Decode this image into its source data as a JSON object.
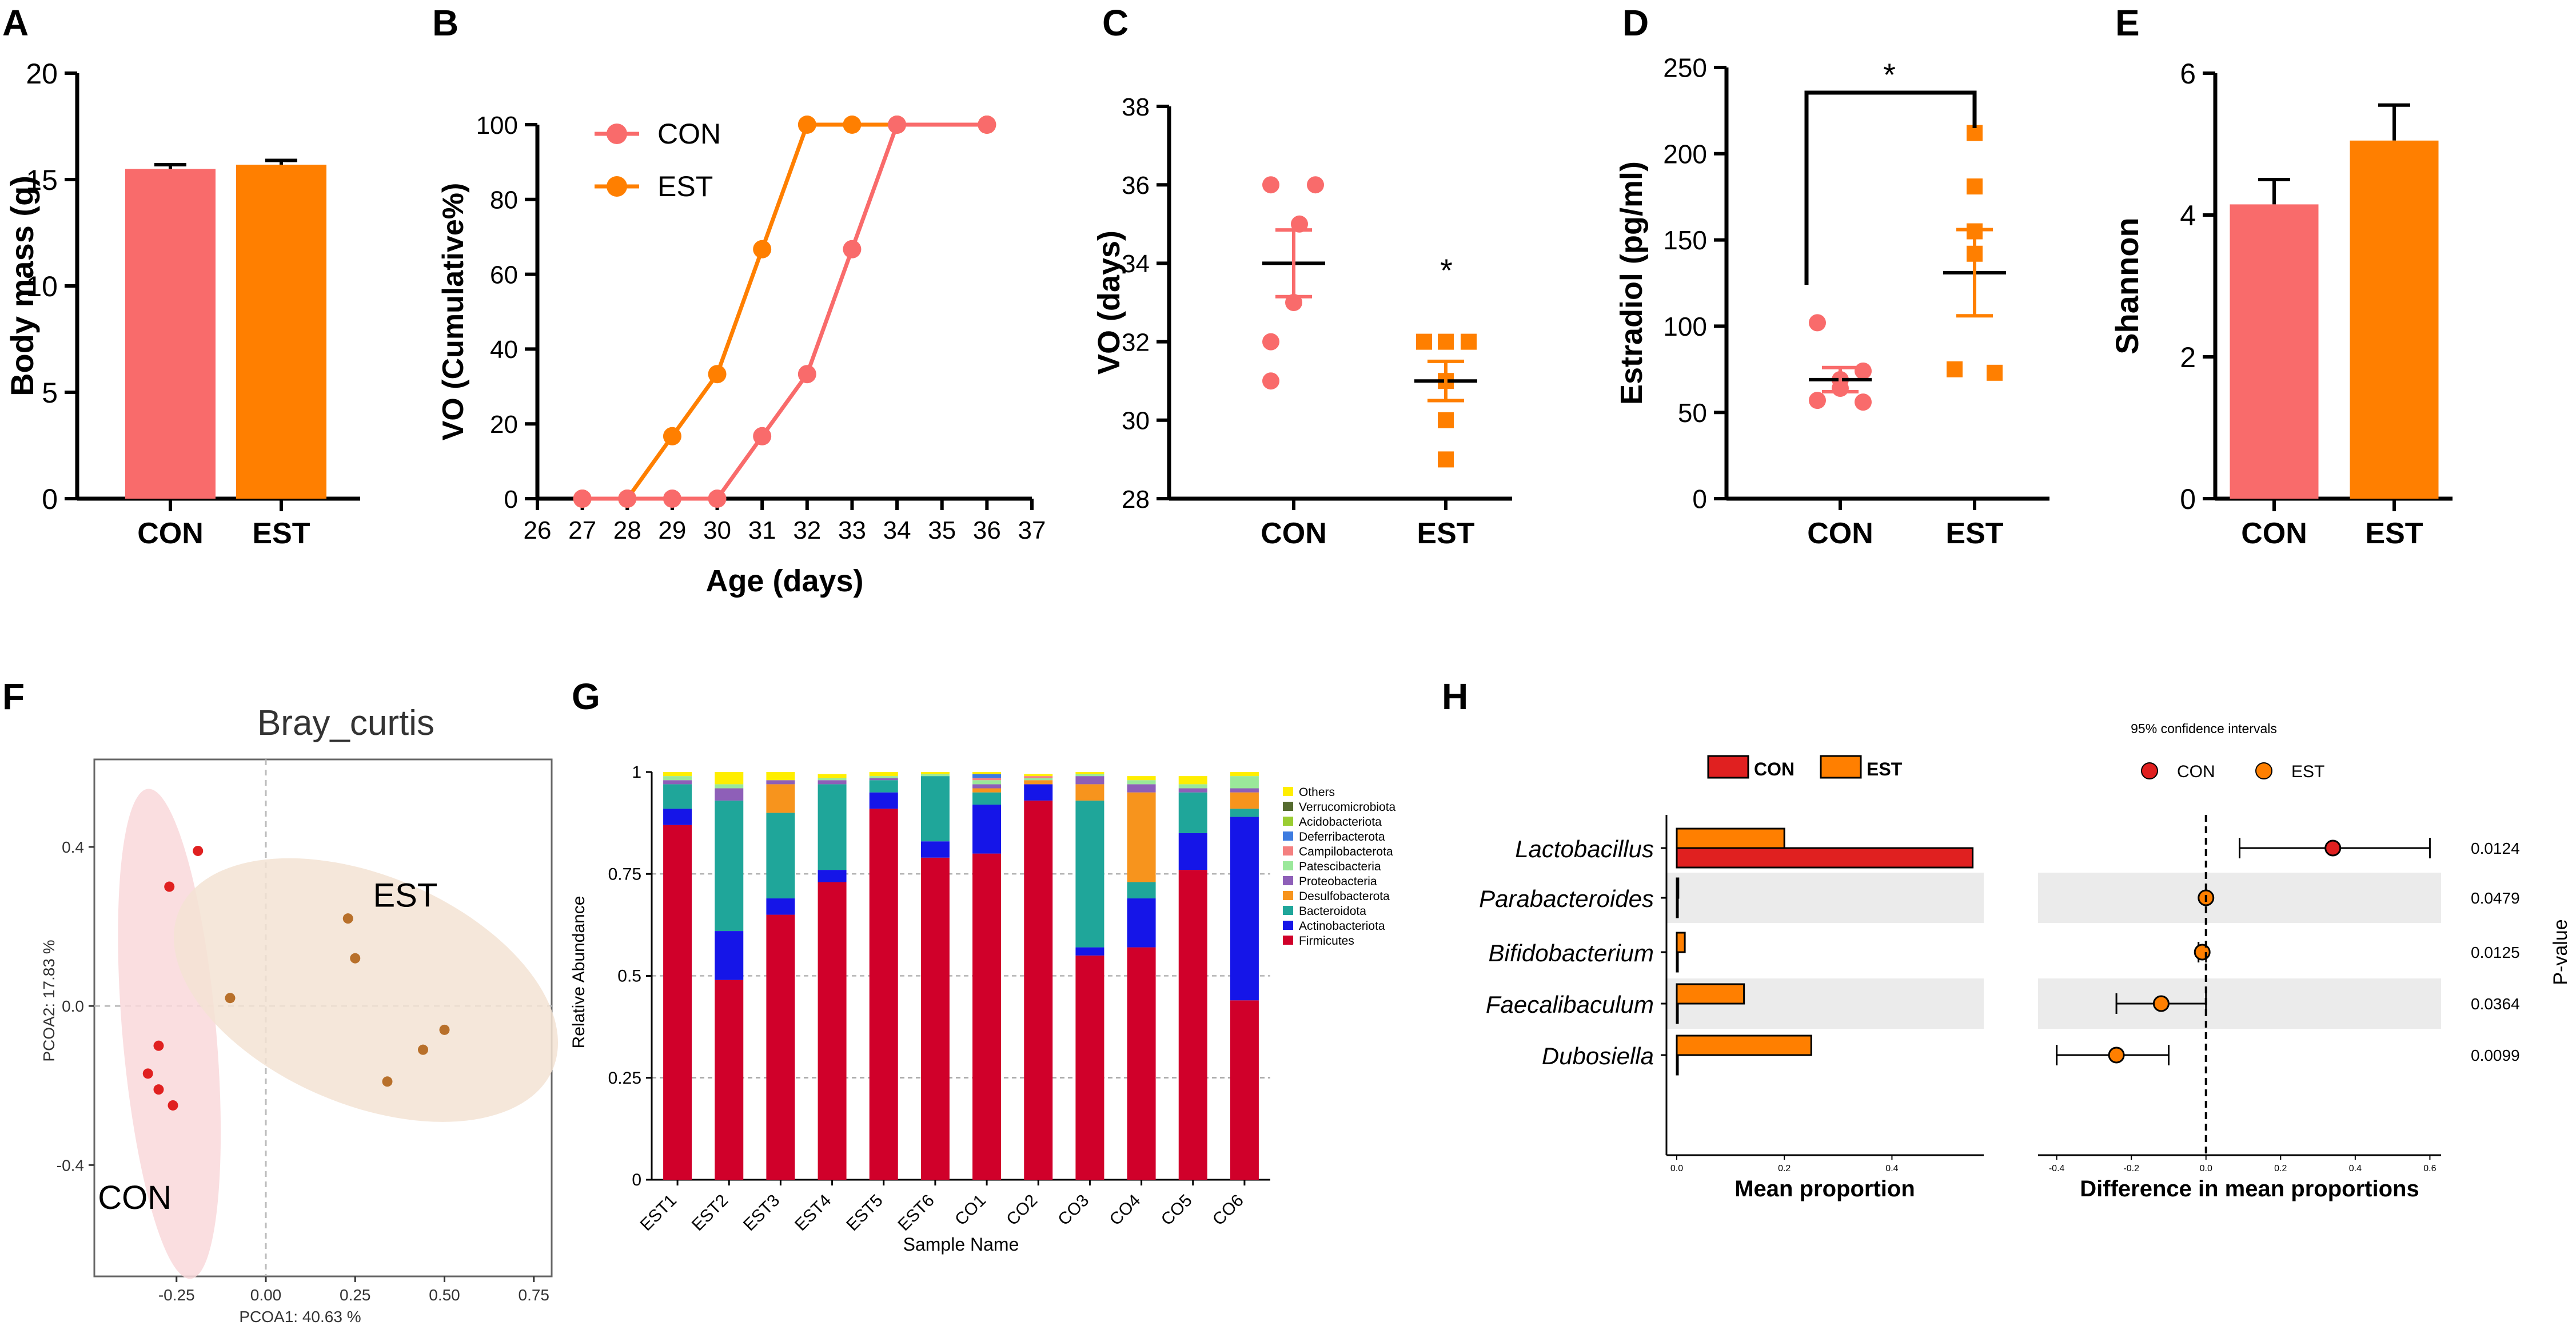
{
  "colors": {
    "con": "#F96B6B",
    "est": "#FF7F00",
    "con_dark": "#E02020",
    "est_brown": "#B8702A",
    "black": "#000000",
    "pcoa_con_fill": "#F9D8DA",
    "pcoa_est_fill": "#F3E3D3"
  },
  "chart_data": [
    {
      "panel": "A",
      "type": "bar",
      "ylabel": "Body mass (g)",
      "ylim": [
        0,
        20
      ],
      "yticks": [
        "0",
        "5",
        "10",
        "15",
        "20"
      ],
      "categories": [
        "CON",
        "EST"
      ],
      "values": [
        15.5,
        15.7
      ],
      "errors": [
        0.2,
        0.2
      ]
    },
    {
      "panel": "B",
      "type": "line",
      "xlabel": "Age (days)",
      "ylabel": "VO (Cumulative%)",
      "xlim": [
        26,
        37
      ],
      "ylim": [
        0,
        100
      ],
      "xticks": [
        "26",
        "27",
        "28",
        "29",
        "30",
        "31",
        "32",
        "33",
        "34",
        "35",
        "36",
        "37"
      ],
      "yticks": [
        "0",
        "20",
        "40",
        "60",
        "80",
        "100"
      ],
      "series": [
        {
          "name": "CON",
          "x": [
            27,
            28,
            29,
            30,
            31,
            32,
            33,
            34,
            36
          ],
          "y": [
            0,
            0,
            0,
            0,
            16.7,
            33.3,
            66.7,
            100,
            100
          ]
        },
        {
          "name": "EST",
          "x": [
            27,
            28,
            29,
            30,
            31,
            32,
            33,
            34,
            36
          ],
          "y": [
            0,
            0,
            16.7,
            33.3,
            66.7,
            100,
            100,
            100,
            100
          ]
        }
      ]
    },
    {
      "panel": "C",
      "type": "scatter",
      "ylabel": "VO (days)",
      "ylim": [
        28,
        38
      ],
      "yticks": [
        "28",
        "30",
        "32",
        "34",
        "36",
        "38"
      ],
      "categories": [
        "CON",
        "EST"
      ],
      "points": [
        [
          36,
          36,
          35,
          33,
          32,
          31
        ],
        [
          32,
          32,
          32,
          31,
          30,
          29
        ]
      ],
      "means": [
        34,
        31
      ],
      "sem": [
        0.85,
        0.5
      ],
      "annotation": "*"
    },
    {
      "panel": "D",
      "type": "scatter",
      "ylabel": "Estradiol (pg/ml)",
      "ylim": [
        0,
        250
      ],
      "yticks": [
        "0",
        "50",
        "100",
        "150",
        "200",
        "250"
      ],
      "categories": [
        "CON",
        "EST"
      ],
      "points": [
        [
          102,
          74,
          69,
          64,
          57,
          56
        ],
        [
          212,
          181,
          155,
          142,
          75,
          73
        ]
      ],
      "means": [
        69,
        131
      ],
      "sem": [
        7,
        25
      ],
      "annotation": "*"
    },
    {
      "panel": "E",
      "type": "bar",
      "ylabel": "Shannon",
      "ylim": [
        0,
        6
      ],
      "yticks": [
        "0",
        "2",
        "4",
        "6"
      ],
      "categories": [
        "CON",
        "EST"
      ],
      "values": [
        4.15,
        5.05
      ],
      "errors": [
        0.35,
        0.5
      ]
    },
    {
      "panel": "F",
      "type": "scatter",
      "title": "Bray_curtis",
      "xlabel": "PCOA1:  40.63 %",
      "ylabel": "PCOA2:  17.83 %",
      "xlim": [
        -0.48,
        0.8
      ],
      "ylim": [
        -0.68,
        0.62
      ],
      "xticks": [
        "-0.25",
        "0.00",
        "0.25",
        "0.50",
        "0.75"
      ],
      "xtick_values": [
        -0.25,
        0,
        0.25,
        0.5,
        0.75
      ],
      "yticks": [
        "0.4",
        "0.0",
        "-0.4"
      ],
      "ytick_values": [
        0.4,
        0,
        -0.4
      ],
      "groups": [
        {
          "name": "CON",
          "x": [
            -0.19,
            -0.27,
            -0.3,
            -0.33,
            -0.3,
            -0.26
          ],
          "y": [
            0.39,
            0.3,
            -0.1,
            -0.17,
            -0.21,
            -0.25
          ]
        },
        {
          "name": "EST",
          "x": [
            -0.1,
            0.23,
            0.25,
            0.5,
            0.44,
            0.34
          ],
          "y": [
            0.02,
            0.22,
            0.12,
            -0.06,
            -0.11,
            -0.19
          ]
        }
      ],
      "labels": [
        "EST",
        "CON"
      ]
    },
    {
      "panel": "G",
      "type": "bar",
      "stacked": true,
      "xlabel": "Sample Name",
      "ylabel": "Relative Abundance",
      "ylim": [
        0,
        1
      ],
      "yticks": [
        "0",
        "0.25",
        "0.5",
        "0.75",
        "1"
      ],
      "categories": [
        "EST1",
        "EST2",
        "EST3",
        "EST4",
        "EST5",
        "EST6",
        "CO1",
        "CO2",
        "CO3",
        "CO4",
        "CO5",
        "CO6"
      ],
      "series": [
        {
          "name": "Firmicutes",
          "color": "#D0002A",
          "values": [
            0.87,
            0.49,
            0.65,
            0.73,
            0.91,
            0.79,
            0.8,
            0.93,
            0.55,
            0.57,
            0.76,
            0.44
          ]
        },
        {
          "name": "Actinobacteriota",
          "color": "#1515E8",
          "values": [
            0.04,
            0.12,
            0.04,
            0.03,
            0.04,
            0.04,
            0.12,
            0.04,
            0.02,
            0.12,
            0.09,
            0.45
          ]
        },
        {
          "name": "Bacteroidota",
          "color": "#1FA69A",
          "values": [
            0.06,
            0.32,
            0.21,
            0.21,
            0.03,
            0.16,
            0.03,
            0,
            0.36,
            0.04,
            0.1,
            0.02
          ]
        },
        {
          "name": "Desulfobacterota",
          "color": "#F7941D",
          "values": [
            0,
            0,
            0.07,
            0,
            0,
            0,
            0.01,
            0.01,
            0.04,
            0.22,
            0,
            0.04
          ]
        },
        {
          "name": "Proteobacteria",
          "color": "#8E5FB8",
          "values": [
            0.01,
            0.03,
            0.01,
            0.01,
            0.005,
            0,
            0.01,
            0,
            0.02,
            0.02,
            0.01,
            0.01
          ]
        },
        {
          "name": "Patescibacteria",
          "color": "#9AE89A",
          "values": [
            0.01,
            0.01,
            0,
            0.005,
            0.005,
            0.005,
            0.01,
            0.005,
            0.005,
            0.01,
            0.01,
            0.03
          ]
        },
        {
          "name": "Campilobacterota",
          "color": "#F48080",
          "values": [
            0,
            0,
            0,
            0,
            0,
            0,
            0.005,
            0.005,
            0,
            0,
            0,
            0
          ]
        },
        {
          "name": "Deferribacterota",
          "color": "#3D7BE0",
          "values": [
            0,
            0,
            0,
            0,
            0,
            0,
            0.01,
            0,
            0,
            0,
            0,
            0
          ]
        },
        {
          "name": "Acidobacteriota",
          "color": "#9ACD32",
          "values": [
            0,
            0,
            0,
            0,
            0,
            0,
            0,
            0,
            0,
            0,
            0,
            0
          ]
        },
        {
          "name": "Verrucomicrobiota",
          "color": "#556B2F",
          "values": [
            0,
            0,
            0,
            0,
            0,
            0,
            0,
            0,
            0,
            0,
            0,
            0
          ]
        },
        {
          "name": "Others",
          "color": "#FFEE00",
          "values": [
            0.01,
            0.03,
            0.02,
            0.01,
            0.01,
            0.005,
            0.005,
            0.005,
            0.005,
            0.01,
            0.02,
            0.01
          ]
        }
      ]
    },
    {
      "panel": "H",
      "type": "bar",
      "orientation": "horizontal",
      "legend": [
        "CON",
        "EST"
      ],
      "categories": [
        "Lactobacillus",
        "Parabacteroides",
        "Bifidobacterium",
        "Faecalibaculum",
        "Dubosiella"
      ],
      "mean_proportion": {
        "CON": [
          0.55,
          0.001,
          0.001,
          0.001,
          0.001
        ],
        "EST": [
          0.2,
          0.003,
          0.015,
          0.125,
          0.25
        ]
      },
      "xlabel_left": "Mean proportion",
      "xlim_left": [
        0,
        0.56
      ],
      "xticks_left": [
        "0.0",
        "0.2",
        "0.4"
      ],
      "xtick_values_left": [
        0,
        0.2,
        0.4
      ],
      "ci_title": "95% confidence intervals",
      "difference": [
        0.34,
        0,
        -0.01,
        -0.12,
        -0.24
      ],
      "ci_low": [
        0.09,
        0,
        -0.02,
        -0.24,
        -0.4
      ],
      "ci_high": [
        0.6,
        0,
        0,
        0,
        -0.1
      ],
      "diff_colors": [
        "con",
        "est",
        "est",
        "est",
        "est"
      ],
      "xlabel_right": "Difference in mean proportions",
      "xlim_right": [
        -0.45,
        0.63
      ],
      "xticks_right": [
        "-0.4",
        "-0.2",
        "0.0",
        "0.2",
        "0.4",
        "0.6"
      ],
      "xtick_values_right": [
        -0.4,
        -0.2,
        0,
        0.2,
        0.4,
        0.6
      ],
      "p_values": [
        "0.0124",
        "0.0479",
        "0.0125",
        "0.0364",
        "0.0099"
      ],
      "p_label": "P-value"
    }
  ]
}
